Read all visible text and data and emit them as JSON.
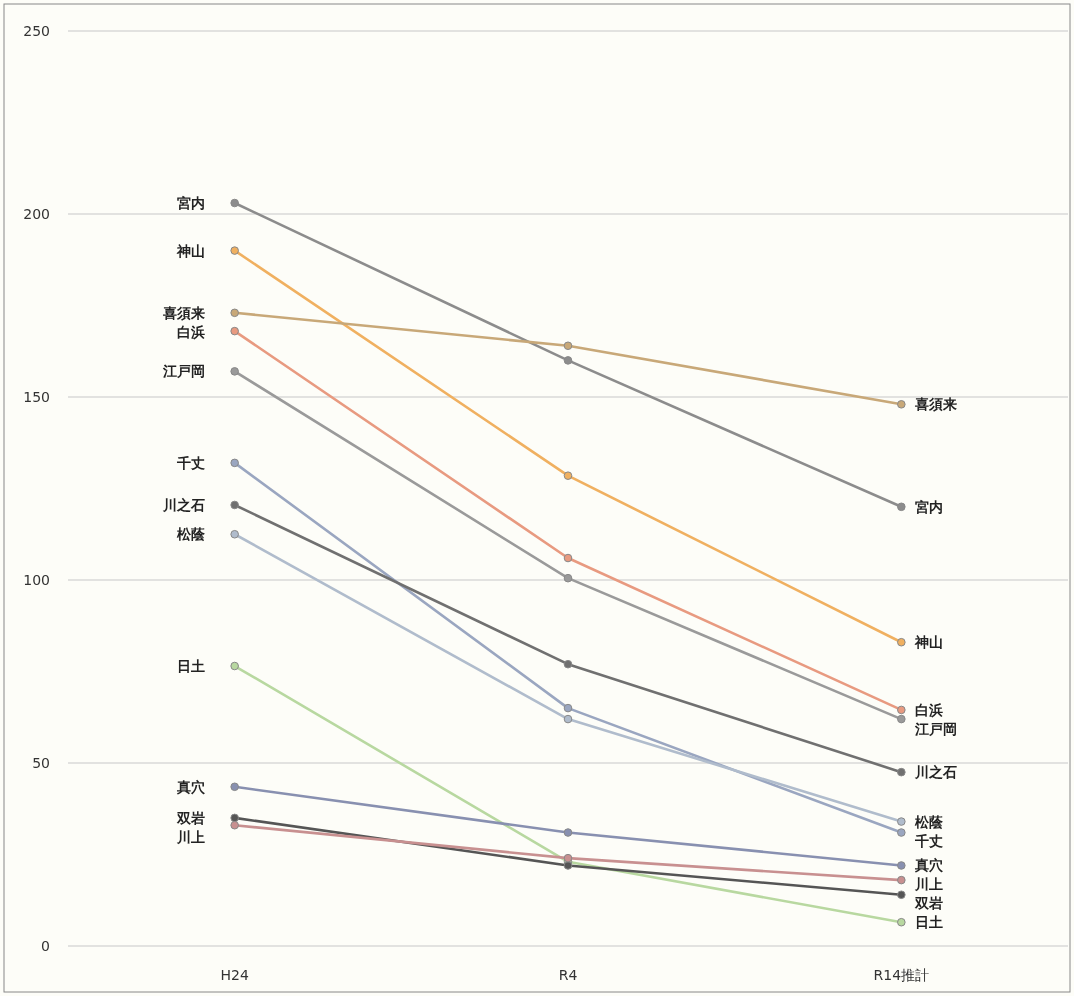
{
  "chart_data": {
    "type": "line",
    "categories": [
      "H24",
      "R4",
      "R14推計"
    ],
    "ylim": [
      0,
      250
    ],
    "yticks": [
      0,
      50,
      100,
      150,
      200,
      250
    ],
    "grid": "y",
    "marker": "circle",
    "line_style": "solid",
    "series": [
      {
        "name": "宮内",
        "color": "#8c8c8c",
        "values": [
          203,
          160,
          120
        ]
      },
      {
        "name": "神山",
        "color": "#f0b060",
        "values": [
          190,
          128.5,
          83
        ]
      },
      {
        "name": "喜須来",
        "color": "#c8a878",
        "values": [
          173,
          164,
          148
        ]
      },
      {
        "name": "白浜",
        "color": "#e89a80",
        "values": [
          168,
          106,
          64.5
        ]
      },
      {
        "name": "江戸岡",
        "color": "#9a9a9a",
        "values": [
          157,
          100.5,
          62
        ]
      },
      {
        "name": "千丈",
        "color": "#9aa6c0",
        "values": [
          132,
          65,
          31
        ]
      },
      {
        "name": "川之石",
        "color": "#707070",
        "values": [
          120.5,
          77,
          47.5
        ]
      },
      {
        "name": "松蔭",
        "color": "#b0bccc",
        "values": [
          112.5,
          62,
          34
        ]
      },
      {
        "name": "日土",
        "color": "#b8d8a0",
        "values": [
          76.5,
          23,
          6.5
        ]
      },
      {
        "name": "真穴",
        "color": "#8890b0",
        "values": [
          43.5,
          31,
          22
        ]
      },
      {
        "name": "双岩",
        "color": "#555555",
        "values": [
          35,
          22,
          14
        ]
      },
      {
        "name": "川上",
        "color": "#c89090",
        "values": [
          33,
          24,
          18
        ]
      }
    ]
  }
}
